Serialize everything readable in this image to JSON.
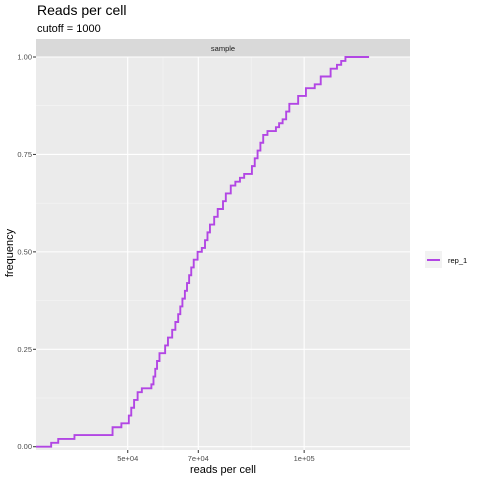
{
  "chart_data": {
    "type": "line",
    "title": "Reads per cell",
    "subtitle": "cutoff = 1000",
    "facet_label": "sample",
    "xlabel": "reads per cell",
    "ylabel": "frequency",
    "xlim": [
      24000,
      130000
    ],
    "ylim": [
      -0.0084,
      1.0
    ],
    "x_ticks": [
      {
        "value": 50000,
        "label": "5e+04"
      },
      {
        "value": 70000,
        "label": "7e+04"
      },
      {
        "value": 100000,
        "label": "1e+05"
      }
    ],
    "y_ticks": [
      {
        "value": 0.0,
        "label": "0.00"
      },
      {
        "value": 0.25,
        "label": "0.25"
      },
      {
        "value": 0.5,
        "label": "0.50"
      },
      {
        "value": 0.75,
        "label": "0.75"
      },
      {
        "value": 1.0,
        "label": "1.00"
      }
    ],
    "grid": true,
    "legend_position": "right",
    "series": [
      {
        "name": "rep_1",
        "color": "#b246e4",
        "step": true,
        "points": [
          [
            24000,
            0.0
          ],
          [
            28300,
            0.01
          ],
          [
            30300,
            0.02
          ],
          [
            34900,
            0.03
          ],
          [
            45700,
            0.05
          ],
          [
            48200,
            0.06
          ],
          [
            50300,
            0.08
          ],
          [
            51000,
            0.1
          ],
          [
            51800,
            0.12
          ],
          [
            52800,
            0.14
          ],
          [
            54000,
            0.15
          ],
          [
            56700,
            0.16
          ],
          [
            57300,
            0.18
          ],
          [
            57800,
            0.2
          ],
          [
            58300,
            0.22
          ],
          [
            59000,
            0.24
          ],
          [
            60600,
            0.26
          ],
          [
            61400,
            0.28
          ],
          [
            62600,
            0.3
          ],
          [
            63500,
            0.32
          ],
          [
            64300,
            0.34
          ],
          [
            64900,
            0.36
          ],
          [
            65500,
            0.38
          ],
          [
            66200,
            0.4
          ],
          [
            66800,
            0.42
          ],
          [
            67400,
            0.44
          ],
          [
            68000,
            0.46
          ],
          [
            68700,
            0.48
          ],
          [
            69800,
            0.5
          ],
          [
            71000,
            0.51
          ],
          [
            71900,
            0.53
          ],
          [
            72600,
            0.55
          ],
          [
            73300,
            0.57
          ],
          [
            74500,
            0.59
          ],
          [
            75500,
            0.61
          ],
          [
            77000,
            0.63
          ],
          [
            77800,
            0.65
          ],
          [
            79200,
            0.67
          ],
          [
            80500,
            0.68
          ],
          [
            81800,
            0.69
          ],
          [
            83000,
            0.7
          ],
          [
            85200,
            0.72
          ],
          [
            86000,
            0.74
          ],
          [
            86800,
            0.76
          ],
          [
            87600,
            0.78
          ],
          [
            88400,
            0.8
          ],
          [
            89600,
            0.81
          ],
          [
            92000,
            0.82
          ],
          [
            92900,
            0.83
          ],
          [
            93900,
            0.84
          ],
          [
            94900,
            0.86
          ],
          [
            95800,
            0.88
          ],
          [
            98300,
            0.9
          ],
          [
            100500,
            0.92
          ],
          [
            103000,
            0.93
          ],
          [
            104700,
            0.95
          ],
          [
            107500,
            0.97
          ],
          [
            109300,
            0.98
          ],
          [
            110500,
            0.99
          ],
          [
            111700,
            1.0
          ],
          [
            118400,
            1.0
          ]
        ]
      }
    ]
  }
}
